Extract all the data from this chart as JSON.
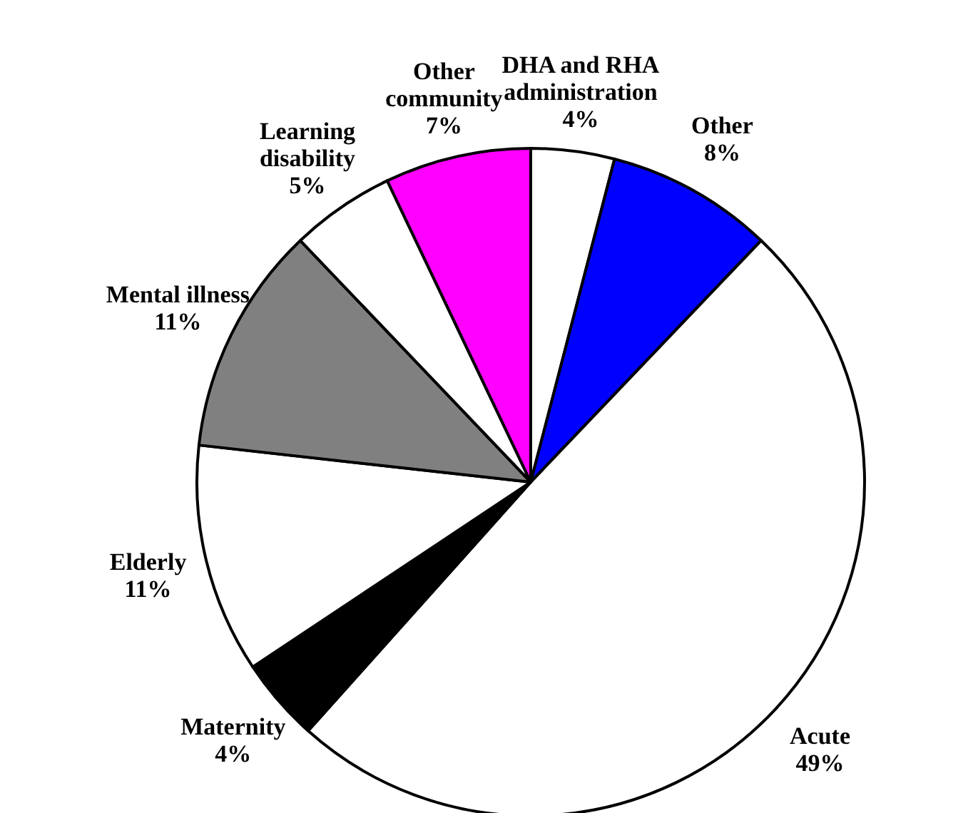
{
  "chart_data": {
    "type": "pie",
    "categories": [
      "DHA and RHA administration",
      "Other",
      "Acute",
      "Maternity",
      "Elderly",
      "Mental illness",
      "Learning disability",
      "Other community"
    ],
    "values": [
      4,
      8,
      49,
      4,
      11,
      11,
      5,
      7
    ],
    "colors": [
      "#ffffff",
      "#0000ff",
      "#ffffff",
      "#000000",
      "#ffffff",
      "#808080",
      "#ffffff",
      "#ff00ff"
    ],
    "value_labels": [
      "4%",
      "8%",
      "49%",
      "4%",
      "11%",
      "11%",
      "5%",
      "7%"
    ]
  }
}
